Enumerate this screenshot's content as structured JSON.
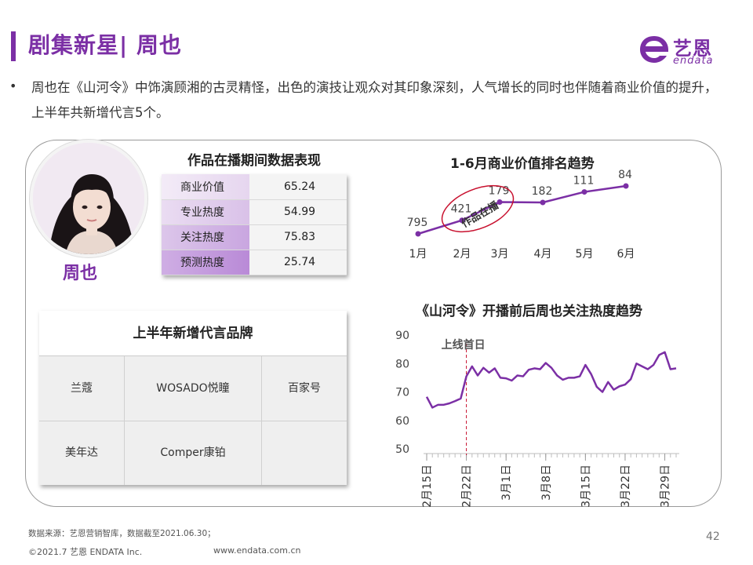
{
  "header": {
    "title": "剧集新星| 周也",
    "logo_cn": "艺恩",
    "logo_en": "endata"
  },
  "intro": {
    "bullet": "•",
    "text": "周也在《山河令》中饰演顾湘的古灵精怪，出色的演技让观众对其印象深刻，人气增长的同时也伴随着商业价值的提升，上半年共新增代言5个。"
  },
  "profile": {
    "name": "周也"
  },
  "performance": {
    "title": "作品在播期间数据表现",
    "rows": [
      {
        "label": "商业价值",
        "value": "65.24"
      },
      {
        "label": "专业热度",
        "value": "54.99"
      },
      {
        "label": "关注热度",
        "value": "75.83"
      },
      {
        "label": "预测热度",
        "value": "25.74"
      }
    ]
  },
  "brands": {
    "title": "上半年新增代言品牌",
    "items": [
      "兰蔻",
      "WOSADO悦瞳",
      "百家号",
      "美年达",
      "Comper康铂"
    ]
  },
  "colors": {
    "accent": "#7b2fa5",
    "marker": "#c8102e",
    "highlight": "#b84fd8"
  },
  "chart_data": [
    {
      "type": "line",
      "title": "1-6月商业价值排名趋势",
      "categories": [
        "1月",
        "2月",
        "3月",
        "4月",
        "5月",
        "6月"
      ],
      "values": [
        795,
        421,
        179,
        182,
        111,
        84
      ],
      "y_axis": "rank (lower is better, inverted)",
      "annotation": "作品在播",
      "grid": false
    },
    {
      "type": "line",
      "title": "《山河令》开播前后周也关注热度趋势",
      "x_tick_labels": [
        "2月15日",
        "2月22日",
        "3月1日",
        "3月8日",
        "3月15日",
        "3月22日",
        "3月29日"
      ],
      "x_start": "2月15日",
      "x_end": "3月30日",
      "y_ticks": [
        50,
        60,
        70,
        80,
        90
      ],
      "ylim": [
        50,
        90
      ],
      "marker_label": "上线首日",
      "marker_x": "2月22日",
      "values": [
        68.3,
        64.5,
        65.5,
        65.5,
        66.0,
        66.8,
        67.7,
        75.5,
        79.0,
        75.8,
        78.5,
        76.8,
        78.3,
        75.0,
        74.8,
        74.0,
        75.8,
        75.5,
        77.8,
        78.3,
        78.0,
        80.2,
        78.5,
        75.8,
        74.3,
        75.0,
        75.0,
        75.5,
        79.5,
        76.3,
        71.8,
        70.0,
        73.5,
        70.8,
        72.0,
        72.6,
        74.5,
        80.0,
        79.0,
        78.0,
        79.5,
        83.0,
        84.0,
        78.0,
        78.3
      ],
      "grid": false
    }
  ],
  "footer": {
    "source": "数据来源：艺恩营销智库，数据截至2021.06.30；",
    "copyright": "©2021.7 艺恩 ENDATA Inc.",
    "url": "www.endata.com.cn",
    "page": "42"
  }
}
